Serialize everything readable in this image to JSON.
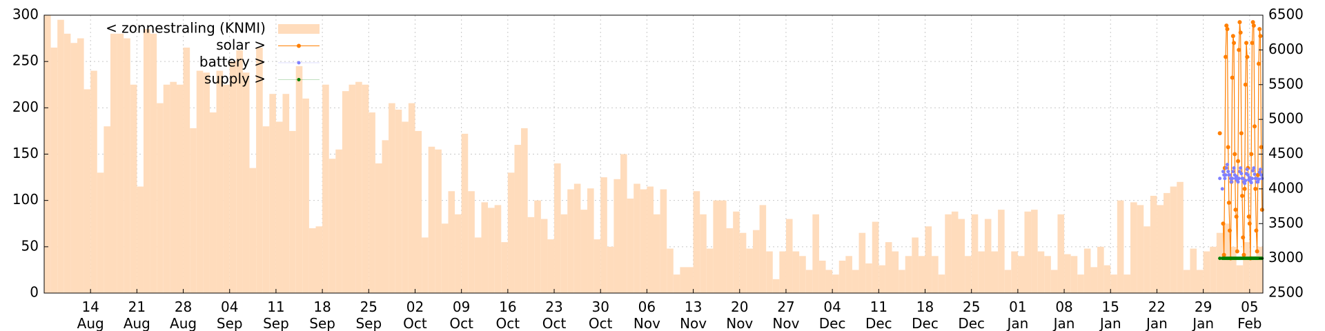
{
  "chart_data": {
    "type": "combo",
    "xlim": [
      "08-07",
      "02-07"
    ],
    "xticks": [
      {
        "value": "08-14",
        "label": "14 Aug"
      },
      {
        "value": "08-21",
        "label": "21 Aug"
      },
      {
        "value": "08-28",
        "label": "28 Aug"
      },
      {
        "value": "09-04",
        "label": "04 Sep"
      },
      {
        "value": "09-11",
        "label": "11 Sep"
      },
      {
        "value": "09-18",
        "label": "18 Sep"
      },
      {
        "value": "09-25",
        "label": "25 Sep"
      },
      {
        "value": "10-02",
        "label": "02 Oct"
      },
      {
        "value": "10-09",
        "label": "09 Oct"
      },
      {
        "value": "10-16",
        "label": "16 Oct"
      },
      {
        "value": "10-23",
        "label": "23 Oct"
      },
      {
        "value": "10-30",
        "label": "30 Oct"
      },
      {
        "value": "11-06",
        "label": "06 Nov"
      },
      {
        "value": "11-13",
        "label": "13 Nov"
      },
      {
        "value": "11-20",
        "label": "20 Nov"
      },
      {
        "value": "11-27",
        "label": "27 Nov"
      },
      {
        "value": "12-04",
        "label": "04 Dec"
      },
      {
        "value": "12-11",
        "label": "11 Dec"
      },
      {
        "value": "12-18",
        "label": "18 Dec"
      },
      {
        "value": "12-25",
        "label": "25 Dec"
      },
      {
        "value": "01-01",
        "label": "01 Jan"
      },
      {
        "value": "01-08",
        "label": "08 Jan"
      },
      {
        "value": "01-15",
        "label": "15 Jan"
      },
      {
        "value": "01-22",
        "label": "22 Jan"
      },
      {
        "value": "01-29",
        "label": "29 Jan"
      },
      {
        "value": "02-05",
        "label": "05 Feb"
      }
    ],
    "ylim": [
      0,
      300
    ],
    "yticks": [
      0,
      50,
      100,
      150,
      200,
      250,
      300
    ],
    "y2lim": [
      2500,
      6500
    ],
    "y2ticks": [
      2500,
      3000,
      3500,
      4000,
      4500,
      5000,
      5500,
      6000,
      6500
    ],
    "grid": true,
    "legend": "upper-left",
    "x": [
      "08-07",
      "08-08",
      "08-09",
      "08-10",
      "08-11",
      "08-12",
      "08-13",
      "08-14",
      "08-15",
      "08-16",
      "08-17",
      "08-18",
      "08-19",
      "08-20",
      "08-21",
      "08-22",
      "08-23",
      "08-24",
      "08-25",
      "08-26",
      "08-27",
      "08-28",
      "08-29",
      "08-30",
      "08-31",
      "09-01",
      "09-02",
      "09-03",
      "09-04",
      "09-05",
      "09-06",
      "09-07",
      "09-08",
      "09-09",
      "09-10",
      "09-11",
      "09-12",
      "09-13",
      "09-14",
      "09-15",
      "09-16",
      "09-17",
      "09-18",
      "09-19",
      "09-20",
      "09-21",
      "09-22",
      "09-23",
      "09-24",
      "09-25",
      "09-26",
      "09-27",
      "09-28",
      "09-29",
      "09-30",
      "10-01",
      "10-02",
      "10-03",
      "10-04",
      "10-05",
      "10-06",
      "10-07",
      "10-08",
      "10-09",
      "10-10",
      "10-11",
      "10-12",
      "10-13",
      "10-14",
      "10-15",
      "10-16",
      "10-17",
      "10-18",
      "10-19",
      "10-20",
      "10-21",
      "10-22",
      "10-23",
      "10-24",
      "10-25",
      "10-26",
      "10-27",
      "10-28",
      "10-29",
      "10-30",
      "10-31",
      "11-01",
      "11-02",
      "11-03",
      "11-04",
      "11-05",
      "11-06",
      "11-07",
      "11-08",
      "11-09",
      "11-10",
      "11-11",
      "11-12",
      "11-13",
      "11-14",
      "11-15",
      "11-16",
      "11-17",
      "11-18",
      "11-19",
      "11-20",
      "11-21",
      "11-22",
      "11-23",
      "11-24",
      "11-25",
      "11-26",
      "11-27",
      "11-28",
      "11-29",
      "11-30",
      "12-01",
      "12-02",
      "12-03",
      "12-04",
      "12-05",
      "12-06",
      "12-07",
      "12-08",
      "12-09",
      "12-10",
      "12-11",
      "12-12",
      "12-13",
      "12-14",
      "12-15",
      "12-16",
      "12-17",
      "12-18",
      "12-19",
      "12-20",
      "12-21",
      "12-22",
      "12-23",
      "12-24",
      "12-25",
      "12-26",
      "12-27",
      "12-28",
      "12-29",
      "12-30",
      "12-31",
      "01-01",
      "01-02",
      "01-03",
      "01-04",
      "01-05",
      "01-06",
      "01-07",
      "01-08",
      "01-09",
      "01-10",
      "01-11",
      "01-12",
      "01-13",
      "01-14",
      "01-15",
      "01-16",
      "01-17",
      "01-18",
      "01-19",
      "01-20",
      "01-21",
      "01-22",
      "01-23",
      "01-24",
      "01-25",
      "01-26",
      "01-27",
      "01-28",
      "01-29",
      "01-30",
      "01-31",
      "02-01",
      "02-02",
      "02-03",
      "02-04",
      "02-05",
      "02-06"
    ],
    "series": [
      {
        "name": "< zonnestraling (KNMI)",
        "type": "bar",
        "color": "#ffdcbc",
        "values": [
          300,
          265,
          295,
          280,
          270,
          275,
          220,
          240,
          130,
          180,
          280,
          280,
          275,
          225,
          115,
          285,
          280,
          205,
          225,
          228,
          225,
          265,
          178,
          240,
          238,
          195,
          240,
          225,
          250,
          262,
          238,
          135,
          265,
          180,
          215,
          185,
          215,
          175,
          245,
          210,
          70,
          72,
          225,
          145,
          155,
          218,
          225,
          228,
          225,
          195,
          140,
          165,
          205,
          198,
          185,
          205,
          175,
          60,
          158,
          155,
          75,
          110,
          85,
          172,
          110,
          60,
          98,
          92,
          95,
          55,
          130,
          160,
          178,
          82,
          100,
          80,
          58,
          140,
          85,
          112,
          118,
          90,
          113,
          58,
          125,
          50,
          123,
          150,
          102,
          118,
          112,
          115,
          85,
          112,
          48,
          20,
          28,
          28,
          110,
          85,
          48,
          100,
          100,
          70,
          88,
          65,
          48,
          68,
          95,
          45,
          15,
          45,
          80,
          45,
          40,
          25,
          85,
          35,
          25,
          20,
          35,
          40,
          25,
          65,
          32,
          77,
          30,
          55,
          45,
          25,
          40,
          60,
          40,
          72,
          40,
          20,
          85,
          88,
          80,
          40,
          85,
          45,
          80,
          45,
          90,
          25,
          45,
          40,
          88,
          90,
          45,
          40,
          25,
          85,
          42,
          40,
          20,
          48,
          28,
          50,
          30,
          20,
          100,
          20,
          98,
          95,
          72,
          105,
          95,
          108,
          115,
          120,
          25,
          48,
          25,
          45,
          50,
          65,
          75,
          50,
          30,
          55,
          40,
          50
        ]
      },
      {
        "name": "solar >",
        "type": "linespoints",
        "axis": "y2",
        "color": "#ff7f00",
        "x": [
          "01-31 12:00",
          "01-31 21:00",
          "02-01 00:00",
          "02-01 03:00",
          "02-01 06:00",
          "02-01 09:00",
          "02-01 12:00",
          "02-01 15:00",
          "02-01 18:00",
          "02-01 21:00",
          "02-02 00:00",
          "02-02 03:00",
          "02-02 06:00",
          "02-02 09:00",
          "02-02 12:00",
          "02-02 15:00",
          "02-02 18:00",
          "02-02 21:00",
          "02-03 00:00",
          "02-03 03:00",
          "02-03 06:00",
          "02-03 09:00",
          "02-03 12:00",
          "02-03 15:00",
          "02-03 18:00",
          "02-03 21:00",
          "02-04 00:00",
          "02-04 03:00",
          "02-04 06:00",
          "02-04 09:00",
          "02-04 12:00",
          "02-04 15:00",
          "02-04 18:00",
          "02-04 21:00",
          "02-05 00:00",
          "02-05 03:00",
          "02-05 06:00",
          "02-05 09:00",
          "02-05 12:00",
          "02-05 15:00",
          "02-05 18:00",
          "02-05 21:00",
          "02-06 00:00",
          "02-06 03:00",
          "02-06 06:00",
          "02-06 09:00",
          "02-06 12:00",
          "02-06 15:00",
          "02-06 18:00",
          "02-06 21:00"
        ],
        "values": [
          4800,
          null,
          3500,
          3050,
          4300,
          5900,
          6350,
          6300,
          4600,
          3800,
          3400,
          3000,
          4100,
          5600,
          6200,
          6100,
          4500,
          3700,
          3600,
          3100,
          4400,
          6000,
          6400,
          6250,
          4800,
          3900,
          3300,
          3050,
          4000,
          5500,
          6100,
          5900,
          4300,
          3600,
          3500,
          3000,
          4500,
          6100,
          6400,
          6350,
          4900,
          4000,
          3400,
          3100,
          4200,
          5800,
          6300,
          6200,
          4600,
          3700
        ]
      },
      {
        "name": "battery >",
        "type": "points",
        "axis": "y2",
        "color": "#8080ff",
        "x": [
          "01-31 12:00",
          "01-31 21:00",
          "02-01 00:00",
          "02-01 03:00",
          "02-01 06:00",
          "02-01 09:00",
          "02-01 12:00",
          "02-01 15:00",
          "02-01 18:00",
          "02-01 21:00",
          "02-02 00:00",
          "02-02 03:00",
          "02-02 06:00",
          "02-02 09:00",
          "02-02 12:00",
          "02-02 15:00",
          "02-02 18:00",
          "02-02 21:00",
          "02-03 00:00",
          "02-03 03:00",
          "02-03 06:00",
          "02-03 09:00",
          "02-03 12:00",
          "02-03 15:00",
          "02-03 18:00",
          "02-03 21:00",
          "02-04 00:00",
          "02-04 03:00",
          "02-04 06:00",
          "02-04 09:00",
          "02-04 12:00",
          "02-04 15:00",
          "02-04 18:00",
          "02-04 21:00",
          "02-05 00:00",
          "02-05 03:00",
          "02-05 06:00",
          "02-05 09:00",
          "02-05 12:00",
          "02-05 15:00",
          "02-05 18:00",
          "02-05 21:00",
          "02-06 00:00",
          "02-06 03:00",
          "02-06 06:00",
          "02-06 09:00",
          "02-06 12:00",
          "02-06 15:00",
          "02-06 18:00",
          "02-06 21:00"
        ],
        "values": [
          4150,
          4000,
          4250,
          4200,
          4150,
          4200,
          4300,
          4350,
          4250,
          4200,
          4200,
          4150,
          4100,
          4150,
          4250,
          4300,
          4200,
          4150,
          4180,
          4120,
          4100,
          4150,
          4250,
          4300,
          4220,
          4150,
          4150,
          4100,
          4080,
          4120,
          4220,
          4280,
          4200,
          4130,
          4160,
          4110,
          4090,
          4150,
          4260,
          4300,
          4210,
          4150,
          4150,
          4100,
          4100,
          4140,
          4240,
          4280,
          4200,
          4150
        ]
      },
      {
        "name": "supply >",
        "type": "points",
        "axis": "y2",
        "color": "#008000",
        "x": [
          "01-31 12:00",
          "01-31 21:00",
          "02-01 00:00",
          "02-01 03:00",
          "02-01 06:00",
          "02-01 09:00",
          "02-01 12:00",
          "02-01 15:00",
          "02-01 18:00",
          "02-01 21:00",
          "02-02 00:00",
          "02-02 03:00",
          "02-02 06:00",
          "02-02 09:00",
          "02-02 12:00",
          "02-02 15:00",
          "02-02 18:00",
          "02-02 21:00",
          "02-03 00:00",
          "02-03 03:00",
          "02-03 06:00",
          "02-03 09:00",
          "02-03 12:00",
          "02-03 15:00",
          "02-03 18:00",
          "02-03 21:00",
          "02-04 00:00",
          "02-04 03:00",
          "02-04 06:00",
          "02-04 09:00",
          "02-04 12:00",
          "02-04 15:00",
          "02-04 18:00",
          "02-04 21:00",
          "02-05 00:00",
          "02-05 03:00",
          "02-05 06:00",
          "02-05 09:00",
          "02-05 12:00",
          "02-05 15:00",
          "02-05 18:00",
          "02-05 21:00",
          "02-06 00:00",
          "02-06 03:00",
          "02-06 06:00",
          "02-06 09:00",
          "02-06 12:00",
          "02-06 15:00",
          "02-06 18:00",
          "02-06 21:00"
        ],
        "values": [
          3000,
          3000,
          3000,
          3000,
          3000,
          3000,
          3000,
          3000,
          3000,
          3000,
          3000,
          3000,
          3000,
          3000,
          3000,
          3000,
          3000,
          3000,
          3000,
          3000,
          3000,
          3000,
          3000,
          3000,
          3000,
          3000,
          3000,
          3000,
          3000,
          3000,
          3000,
          3000,
          3000,
          3000,
          3000,
          3000,
          3000,
          3000,
          3000,
          3000,
          3000,
          3000,
          3000,
          3000,
          3000,
          3000,
          3000,
          3000,
          3000,
          3000
        ]
      }
    ]
  }
}
